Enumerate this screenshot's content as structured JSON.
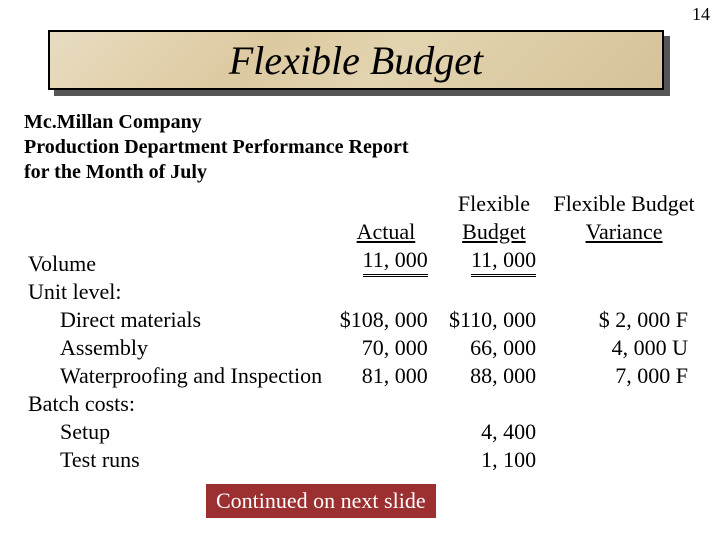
{
  "page_number": "14",
  "title": "Flexible Budget",
  "report_header": {
    "line1": "Mc.Millan Company",
    "line2": "Production Department Performance Report",
    "line3": "for the Month of July"
  },
  "columns": {
    "actual": "Actual",
    "flex_budget_top": "Flexible",
    "flex_budget_bottom": "Budget",
    "flex_var_top": "Flexible Budget",
    "flex_var_bottom": "Variance"
  },
  "rows": {
    "volume": {
      "label": "Volume",
      "actual": "11, 000",
      "budget": "11, 000",
      "variance": ""
    },
    "unit_level_label": "Unit level:",
    "direct_materials": {
      "label": "Direct materials",
      "actual": "$108, 000",
      "budget": "$110, 000",
      "variance": "$  2, 000 F"
    },
    "assembly": {
      "label": "Assembly",
      "actual": "70, 000",
      "budget": "66, 000",
      "variance": "4, 000 U"
    },
    "waterproofing": {
      "label": "Waterproofing and Inspection",
      "actual": "81, 000",
      "budget": "88, 000",
      "variance": "7, 000 F"
    },
    "batch_costs_label": "Batch costs:",
    "setup": {
      "label": "Setup",
      "actual": "",
      "budget": "4, 400",
      "variance": ""
    },
    "test_runs": {
      "label": "Test runs",
      "actual": "",
      "budget": "1, 100",
      "variance": ""
    }
  },
  "continued": "Continued on next slide",
  "colors": {
    "title_bg_start": "#e8dcc0",
    "title_bg_end": "#d6c298",
    "shadow": "#555555",
    "continued_bg": "#9c3031",
    "continued_fg": "#ffffff",
    "text": "#000000",
    "page_bg": "#ffffff"
  }
}
